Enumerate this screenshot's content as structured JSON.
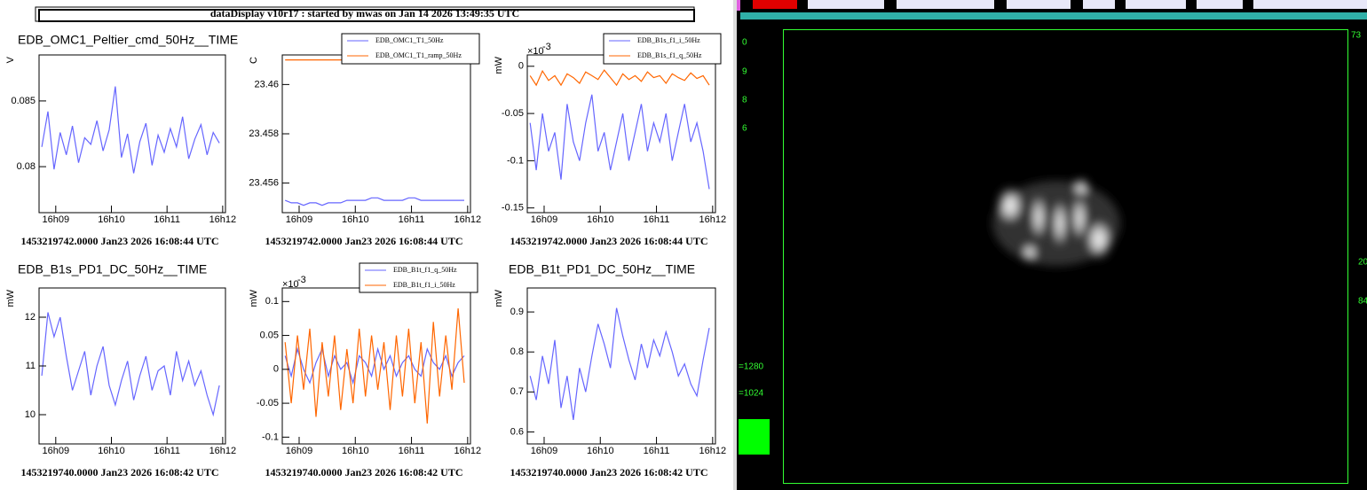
{
  "header": {
    "title": "dataDisplay v10r17 : started by mwas on Jan 14 2026 13:49:35 UTC"
  },
  "chart_data": [
    {
      "type": "line",
      "title": "EDB_OMC1_Peltier_cmd_50Hz__TIME",
      "ylabel": "V",
      "footer": "1453219742.0000 Jan23 2026 16:08:44 UTC",
      "x": [
        968.75,
        968.86,
        968.97,
        969.08,
        969.19,
        969.3,
        969.41,
        969.52,
        969.63,
        969.74,
        969.85,
        969.96,
        970.07,
        970.18,
        970.29,
        970.4,
        970.51,
        970.62,
        970.73,
        970.84,
        970.95,
        971.06,
        971.17,
        971.28,
        971.39,
        971.5,
        971.61,
        971.72,
        971.83,
        971.94
      ],
      "xlim": [
        968.7,
        972.05
      ],
      "xticks": [
        {
          "value": 969,
          "label": "16h09"
        },
        {
          "value": 970,
          "label": "16h10"
        },
        {
          "value": 971,
          "label": "16h11"
        },
        {
          "value": 972,
          "label": "16h12"
        }
      ],
      "ylim": [
        0.0765,
        0.0885
      ],
      "yticks": [
        0.08,
        0.085
      ],
      "series": [
        {
          "color": "#6666ff",
          "values": [
            0.0815,
            0.0842,
            0.0798,
            0.0826,
            0.0809,
            0.0831,
            0.0803,
            0.0822,
            0.0817,
            0.0835,
            0.0812,
            0.0828,
            0.0861,
            0.0807,
            0.0825,
            0.0795,
            0.0819,
            0.0833,
            0.0801,
            0.0824,
            0.0811,
            0.0829,
            0.0815,
            0.0838,
            0.0806,
            0.0821,
            0.0832,
            0.0809,
            0.0826,
            0.0818
          ]
        }
      ]
    },
    {
      "type": "line",
      "ylabel": "C",
      "footer": "1453219742.0000 Jan23 2026 16:08:44 UTC",
      "x": [
        968.75,
        968.86,
        968.97,
        969.08,
        969.19,
        969.3,
        969.41,
        969.52,
        969.63,
        969.74,
        969.85,
        969.96,
        970.07,
        970.18,
        970.29,
        970.4,
        970.51,
        970.62,
        970.73,
        970.84,
        970.95,
        971.06,
        971.17,
        971.28,
        971.39,
        971.5,
        971.61,
        971.72,
        971.83,
        971.94
      ],
      "xlim": [
        968.7,
        972.05
      ],
      "xticks": [
        {
          "value": 969,
          "label": "16h09"
        },
        {
          "value": 970,
          "label": "16h10"
        },
        {
          "value": 971,
          "label": "16h11"
        },
        {
          "value": 972,
          "label": "16h12"
        }
      ],
      "ylim": [
        23.4548,
        23.4612
      ],
      "yticks": [
        23.456,
        23.458,
        23.46
      ],
      "series": [
        {
          "name": "EDB_OMC1_T1_50Hz",
          "color": "#6666ff",
          "values": [
            23.4553,
            23.4552,
            23.4552,
            23.4551,
            23.4552,
            23.4552,
            23.4551,
            23.4552,
            23.4552,
            23.4552,
            23.4553,
            23.4553,
            23.4553,
            23.4553,
            23.4554,
            23.4554,
            23.4553,
            23.4553,
            23.4553,
            23.4553,
            23.4554,
            23.4554,
            23.4553,
            23.4553,
            23.4553,
            23.4553,
            23.4553,
            23.4553,
            23.4553,
            23.4553
          ]
        },
        {
          "name": "EDB_OMC1_T1_ramp_50Hz",
          "color": "#ff6600",
          "values": [
            23.461,
            23.461,
            23.461,
            23.461,
            23.461,
            23.461,
            23.461,
            23.461,
            23.461,
            23.461,
            23.461,
            23.461,
            23.461,
            23.461,
            23.461,
            23.461,
            23.461,
            23.461,
            23.461,
            23.461,
            23.461,
            23.461,
            23.461,
            23.461,
            23.461,
            23.461,
            23.461,
            23.461,
            23.461,
            23.461
          ]
        }
      ]
    },
    {
      "type": "line",
      "ylabel": "mW",
      "multiplier": "×10",
      "multiplier_exp": "-3",
      "footer": "1453219742.0000 Jan23 2026 16:08:44 UTC",
      "x": [
        968.75,
        968.86,
        968.97,
        969.08,
        969.19,
        969.3,
        969.41,
        969.52,
        969.63,
        969.74,
        969.85,
        969.96,
        970.07,
        970.18,
        970.29,
        970.4,
        970.51,
        970.62,
        970.73,
        970.84,
        970.95,
        971.06,
        971.17,
        971.28,
        971.39,
        971.5,
        971.61,
        971.72,
        971.83,
        971.94
      ],
      "xlim": [
        968.7,
        972.05
      ],
      "xticks": [
        {
          "value": 969,
          "label": "16h09"
        },
        {
          "value": 970,
          "label": "16h10"
        },
        {
          "value": 971,
          "label": "16h11"
        },
        {
          "value": 972,
          "label": "16h12"
        }
      ],
      "ylim": [
        -0.155,
        0.012
      ],
      "yticks": [
        -0.15,
        -0.1,
        -0.05,
        0
      ],
      "series": [
        {
          "name": "EDB_B1s_f1_i_50Hz",
          "color": "#6666ff",
          "values": [
            -0.06,
            -0.11,
            -0.05,
            -0.09,
            -0.07,
            -0.12,
            -0.04,
            -0.08,
            -0.1,
            -0.06,
            -0.03,
            -0.09,
            -0.07,
            -0.11,
            -0.08,
            -0.05,
            -0.1,
            -0.07,
            -0.04,
            -0.09,
            -0.06,
            -0.08,
            -0.05,
            -0.1,
            -0.07,
            -0.04,
            -0.08,
            -0.06,
            -0.09,
            -0.13
          ]
        },
        {
          "name": "EDB_B1s_f1_q_50Hz",
          "color": "#ff6600",
          "values": [
            -0.01,
            -0.02,
            -0.005,
            -0.015,
            -0.01,
            -0.02,
            -0.008,
            -0.012,
            -0.018,
            -0.006,
            -0.01,
            -0.014,
            -0.004,
            -0.012,
            -0.02,
            -0.008,
            -0.014,
            -0.01,
            -0.016,
            -0.006,
            -0.012,
            -0.01,
            -0.018,
            -0.008,
            -0.012,
            -0.015,
            -0.007,
            -0.013,
            -0.01,
            -0.02
          ]
        }
      ]
    },
    {
      "type": "line",
      "title": "EDB_B1s_PD1_DC_50Hz__TIME",
      "ylabel": "mW",
      "footer": "1453219740.0000 Jan23 2026 16:08:42 UTC",
      "x": [
        968.75,
        968.86,
        968.97,
        969.08,
        969.19,
        969.3,
        969.41,
        969.52,
        969.63,
        969.74,
        969.85,
        969.96,
        970.07,
        970.18,
        970.29,
        970.4,
        970.51,
        970.62,
        970.73,
        970.84,
        970.95,
        971.06,
        971.17,
        971.28,
        971.39,
        971.5,
        971.61,
        971.72,
        971.83,
        971.94
      ],
      "xlim": [
        968.7,
        972.05
      ],
      "xticks": [
        {
          "value": 969,
          "label": "16h09"
        },
        {
          "value": 970,
          "label": "16h10"
        },
        {
          "value": 971,
          "label": "16h11"
        },
        {
          "value": 972,
          "label": "16h12"
        }
      ],
      "ylim": [
        9.4,
        12.6
      ],
      "yticks": [
        10,
        11,
        12
      ],
      "series": [
        {
          "color": "#6666ff",
          "values": [
            10.8,
            12.1,
            11.6,
            12.0,
            11.2,
            10.5,
            10.9,
            11.3,
            10.4,
            11.0,
            11.4,
            10.6,
            10.2,
            10.7,
            11.1,
            10.3,
            10.8,
            11.2,
            10.5,
            10.9,
            11.0,
            10.4,
            11.3,
            10.7,
            11.1,
            10.6,
            10.9,
            10.4,
            10.0,
            10.6
          ]
        }
      ]
    },
    {
      "type": "line",
      "ylabel": "mW",
      "multiplier": "×10",
      "multiplier_exp": "-3",
      "footer": "1453219740.0000 Jan23 2026 16:08:42 UTC",
      "x": [
        968.75,
        968.86,
        968.97,
        969.08,
        969.19,
        969.3,
        969.41,
        969.52,
        969.63,
        969.74,
        969.85,
        969.96,
        970.07,
        970.18,
        970.29,
        970.4,
        970.51,
        970.62,
        970.73,
        970.84,
        970.95,
        971.06,
        971.17,
        971.28,
        971.39,
        971.5,
        971.61,
        971.72,
        971.83,
        971.94
      ],
      "xlim": [
        968.7,
        972.05
      ],
      "xticks": [
        {
          "value": 969,
          "label": "16h09"
        },
        {
          "value": 970,
          "label": "16h10"
        },
        {
          "value": 971,
          "label": "16h11"
        },
        {
          "value": 972,
          "label": "16h12"
        }
      ],
      "ylim": [
        -0.11,
        0.12
      ],
      "yticks": [
        -0.1,
        -0.05,
        0,
        0.05,
        0.1
      ],
      "series": [
        {
          "name": "EDB_B1t_f1_q_50Hz",
          "color": "#6666ff",
          "values": [
            0.02,
            -0.01,
            0.03,
            0.0,
            -0.02,
            0.01,
            0.03,
            -0.01,
            0.02,
            0.0,
            0.01,
            -0.02,
            0.02,
            0.01,
            -0.01,
            0.03,
            0.0,
            0.02,
            -0.01,
            0.01,
            0.02,
            0.0,
            -0.01,
            0.03,
            0.01,
            0.0,
            0.02,
            -0.01,
            0.01,
            0.02
          ]
        },
        {
          "name": "EDB_B1t_f1_i_50Hz",
          "color": "#ff6600",
          "values": [
            0.04,
            -0.05,
            0.05,
            -0.03,
            0.06,
            -0.07,
            0.04,
            -0.04,
            0.05,
            -0.06,
            0.03,
            -0.05,
            0.06,
            -0.04,
            0.05,
            -0.03,
            0.04,
            -0.06,
            0.05,
            -0.04,
            0.06,
            -0.05,
            0.04,
            -0.08,
            0.07,
            -0.04,
            0.05,
            -0.03,
            0.09,
            -0.02
          ]
        }
      ]
    },
    {
      "type": "line",
      "title": "EDB_B1t_PD1_DC_50Hz__TIME",
      "ylabel": "mW",
      "footer": "1453219740.0000 Jan23 2026 16:08:42 UTC",
      "x": [
        968.75,
        968.86,
        968.97,
        969.08,
        969.19,
        969.3,
        969.41,
        969.52,
        969.63,
        969.74,
        969.85,
        969.96,
        970.07,
        970.18,
        970.29,
        970.4,
        970.51,
        970.62,
        970.73,
        970.84,
        970.95,
        971.06,
        971.17,
        971.28,
        971.39,
        971.5,
        971.61,
        971.72,
        971.83,
        971.94
      ],
      "xlim": [
        968.7,
        972.05
      ],
      "xticks": [
        {
          "value": 969,
          "label": "16h09"
        },
        {
          "value": 970,
          "label": "16h10"
        },
        {
          "value": 971,
          "label": "16h11"
        },
        {
          "value": 972,
          "label": "16h12"
        }
      ],
      "ylim": [
        0.57,
        0.96
      ],
      "yticks": [
        0.6,
        0.7,
        0.8,
        0.9
      ],
      "series": [
        {
          "color": "#6666ff",
          "values": [
            0.74,
            0.68,
            0.79,
            0.72,
            0.83,
            0.66,
            0.74,
            0.63,
            0.76,
            0.7,
            0.79,
            0.87,
            0.82,
            0.76,
            0.91,
            0.84,
            0.78,
            0.73,
            0.82,
            0.76,
            0.83,
            0.79,
            0.85,
            0.8,
            0.74,
            0.77,
            0.72,
            0.69,
            0.78,
            0.86
          ]
        }
      ]
    }
  ],
  "camera": {
    "labels": [
      "0",
      "9",
      "8",
      "6",
      "73",
      "20",
      "84",
      "=1280",
      "=1024"
    ]
  }
}
